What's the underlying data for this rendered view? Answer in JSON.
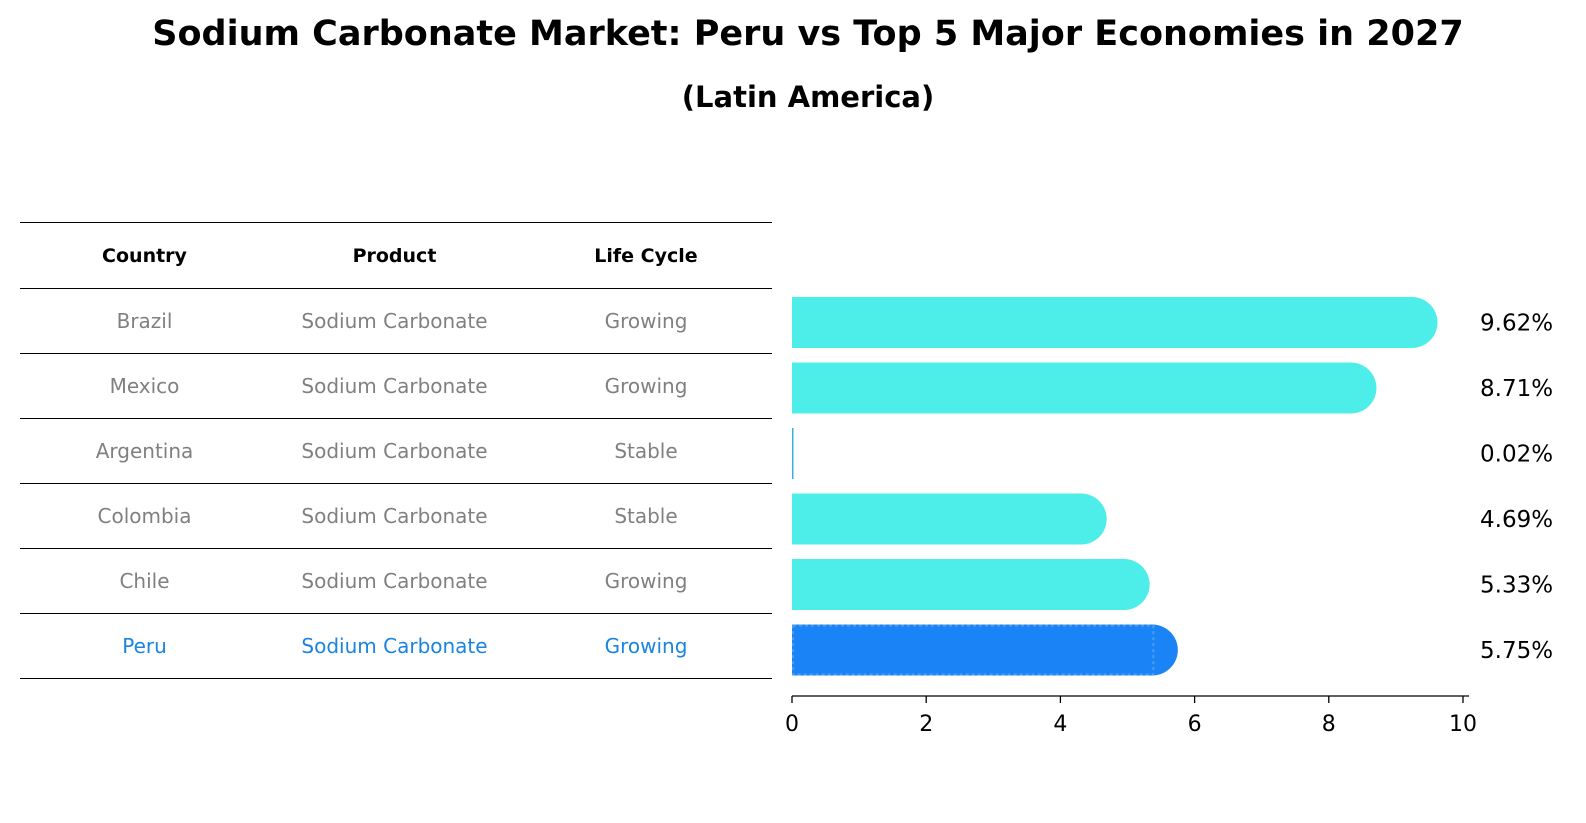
{
  "title": "Sodium Carbonate Market: Peru vs Top 5 Major Economies in 2027",
  "subtitle": "(Latin America)",
  "table": {
    "headers": [
      "Country",
      "Product",
      "Life Cycle"
    ],
    "rows": [
      [
        "Brazil",
        "Sodium Carbonate",
        "Growing"
      ],
      [
        "Mexico",
        "Sodium Carbonate",
        "Growing"
      ],
      [
        "Argentina",
        "Sodium Carbonate",
        "Stable"
      ],
      [
        "Colombia",
        "Sodium Carbonate",
        "Stable"
      ],
      [
        "Chile",
        "Sodium Carbonate",
        "Growing"
      ],
      [
        "Peru",
        "Sodium Carbonate",
        "Growing"
      ]
    ]
  },
  "chart_data": {
    "type": "bar",
    "orientation": "horizontal",
    "categories": [
      "Brazil",
      "Mexico",
      "Argentina",
      "Colombia",
      "Chile",
      "Peru"
    ],
    "values": [
      9.62,
      8.71,
      0.02,
      4.69,
      5.33,
      5.75
    ],
    "value_labels": [
      "9.62%",
      "8.71%",
      "0.02%",
      "4.69%",
      "5.33%",
      "5.75%"
    ],
    "highlight": "Peru",
    "xlim": [
      0,
      10
    ],
    "xticks": [
      0,
      2,
      4,
      6,
      8,
      10
    ],
    "xlabel": "",
    "ylabel": "",
    "grid": false,
    "colors": {
      "bar": "#4deee9",
      "highlight": "#1a84f6"
    }
  }
}
